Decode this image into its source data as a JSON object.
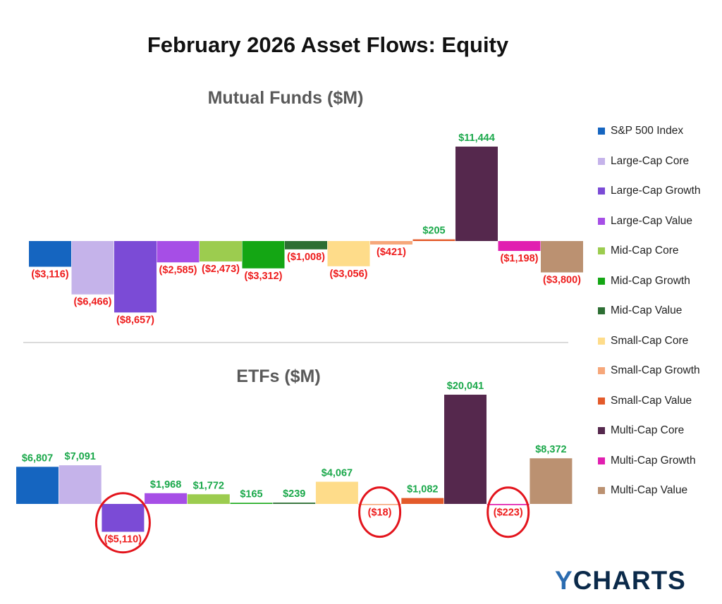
{
  "title": "February 2026 Asset Flows: Equity",
  "brand": {
    "logo_text": "YCHARTS",
    "logo_accent": "Y",
    "logo_rest": "CHARTS"
  },
  "colors": {
    "positive_label": "#1aa84a",
    "negative_label": "#ee1c1c",
    "highlight_ring": "#e3141c",
    "divider": "#cfcfcf"
  },
  "chart_data": [
    {
      "type": "bar",
      "title": "Mutual Funds ($M)",
      "categories": [
        "S&P 500 Index",
        "Large-Cap Core",
        "Large-Cap Growth",
        "Large-Cap Value",
        "Mid-Cap Core",
        "Mid-Cap Growth",
        "Mid-Cap Value",
        "Small-Cap Core",
        "Small-Cap Growth",
        "Small-Cap Value",
        "Multi-Cap Core",
        "Multi-Cap Growth",
        "Multi-Cap Value"
      ],
      "values": [
        -3116,
        -6466,
        -8657,
        -2585,
        -2473,
        -3312,
        -1008,
        -3056,
        -421,
        205,
        11444,
        -1198,
        -3800
      ],
      "data_labels": [
        "($3,116)",
        "($6,466)",
        "($8,657)",
        "($2,585)",
        "($2,473)",
        "($3,312)",
        "($1,008)",
        "($3,056)",
        "($421)",
        "$205",
        "$11,444",
        "($1,198)",
        "($3,800)"
      ],
      "highlighted": []
    },
    {
      "type": "bar",
      "title": "ETFs ($M)",
      "categories": [
        "S&P 500 Index",
        "Large-Cap Core",
        "Large-Cap Growth",
        "Large-Cap Value",
        "Mid-Cap Core",
        "Mid-Cap Growth",
        "Mid-Cap Value",
        "Small-Cap Core",
        "Small-Cap Growth",
        "Small-Cap Value",
        "Multi-Cap Core",
        "Multi-Cap Growth",
        "Multi-Cap Value"
      ],
      "values": [
        6807,
        7091,
        -5110,
        1968,
        1772,
        165,
        239,
        4067,
        -18,
        1082,
        20041,
        -223,
        8372
      ],
      "data_labels": [
        "$6,807",
        "$7,091",
        "($5,110)",
        "$1,968",
        "$1,772",
        "$165",
        "$239",
        "$4,067",
        "($18)",
        "$1,082",
        "$20,041",
        "($223)",
        "$8,372"
      ],
      "highlighted": [
        "Large-Cap Growth",
        "Small-Cap Growth",
        "Multi-Cap Growth"
      ]
    }
  ],
  "legend": {
    "placement": "right",
    "items": [
      {
        "label": "S&P 500 Index",
        "color": "#1565c0"
      },
      {
        "label": "Large-Cap Core",
        "color": "#c5b3ea"
      },
      {
        "label": "Large-Cap Growth",
        "color": "#7b4bd6"
      },
      {
        "label": "Large-Cap Value",
        "color": "#a64ee6"
      },
      {
        "label": "Mid-Cap Core",
        "color": "#9ccc4f"
      },
      {
        "label": "Mid-Cap Growth",
        "color": "#14a614"
      },
      {
        "label": "Mid-Cap Value",
        "color": "#2d6e33"
      },
      {
        "label": "Small-Cap Core",
        "color": "#fedc8a"
      },
      {
        "label": "Small-Cap Growth",
        "color": "#f6a77a"
      },
      {
        "label": "Small-Cap Value",
        "color": "#e35a2a"
      },
      {
        "label": "Multi-Cap Core",
        "color": "#55284d"
      },
      {
        "label": "Multi-Cap Growth",
        "color": "#e11fb0"
      },
      {
        "label": "Multi-Cap Value",
        "color": "#bb9171"
      }
    ]
  }
}
